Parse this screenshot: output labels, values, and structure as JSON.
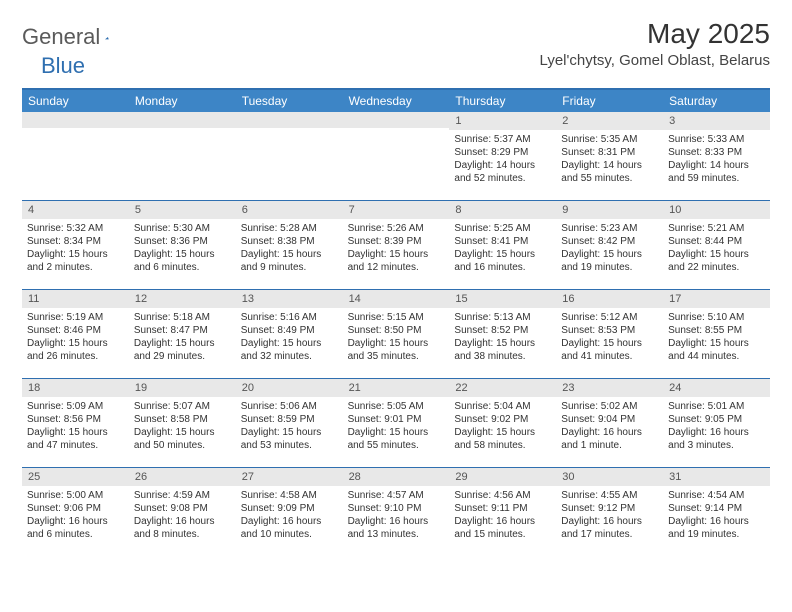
{
  "brand": {
    "text1": "General",
    "text2": "Blue"
  },
  "title": "May 2025",
  "location": "Lyel'chytsy, Gomel Oblast, Belarus",
  "colors": {
    "header_bg": "#3d85c6",
    "accent_border": "#2f6fb0",
    "daynum_bg": "#e8e8e8",
    "logo_gray": "#5a5a5a",
    "logo_blue": "#2f6fb0"
  },
  "weekdays": [
    "Sunday",
    "Monday",
    "Tuesday",
    "Wednesday",
    "Thursday",
    "Friday",
    "Saturday"
  ],
  "weeks": [
    [
      {
        "n": "",
        "sr": "",
        "ss": "",
        "dl": ""
      },
      {
        "n": "",
        "sr": "",
        "ss": "",
        "dl": ""
      },
      {
        "n": "",
        "sr": "",
        "ss": "",
        "dl": ""
      },
      {
        "n": "",
        "sr": "",
        "ss": "",
        "dl": ""
      },
      {
        "n": "1",
        "sr": "Sunrise: 5:37 AM",
        "ss": "Sunset: 8:29 PM",
        "dl": "Daylight: 14 hours and 52 minutes."
      },
      {
        "n": "2",
        "sr": "Sunrise: 5:35 AM",
        "ss": "Sunset: 8:31 PM",
        "dl": "Daylight: 14 hours and 55 minutes."
      },
      {
        "n": "3",
        "sr": "Sunrise: 5:33 AM",
        "ss": "Sunset: 8:33 PM",
        "dl": "Daylight: 14 hours and 59 minutes."
      }
    ],
    [
      {
        "n": "4",
        "sr": "Sunrise: 5:32 AM",
        "ss": "Sunset: 8:34 PM",
        "dl": "Daylight: 15 hours and 2 minutes."
      },
      {
        "n": "5",
        "sr": "Sunrise: 5:30 AM",
        "ss": "Sunset: 8:36 PM",
        "dl": "Daylight: 15 hours and 6 minutes."
      },
      {
        "n": "6",
        "sr": "Sunrise: 5:28 AM",
        "ss": "Sunset: 8:38 PM",
        "dl": "Daylight: 15 hours and 9 minutes."
      },
      {
        "n": "7",
        "sr": "Sunrise: 5:26 AM",
        "ss": "Sunset: 8:39 PM",
        "dl": "Daylight: 15 hours and 12 minutes."
      },
      {
        "n": "8",
        "sr": "Sunrise: 5:25 AM",
        "ss": "Sunset: 8:41 PM",
        "dl": "Daylight: 15 hours and 16 minutes."
      },
      {
        "n": "9",
        "sr": "Sunrise: 5:23 AM",
        "ss": "Sunset: 8:42 PM",
        "dl": "Daylight: 15 hours and 19 minutes."
      },
      {
        "n": "10",
        "sr": "Sunrise: 5:21 AM",
        "ss": "Sunset: 8:44 PM",
        "dl": "Daylight: 15 hours and 22 minutes."
      }
    ],
    [
      {
        "n": "11",
        "sr": "Sunrise: 5:19 AM",
        "ss": "Sunset: 8:46 PM",
        "dl": "Daylight: 15 hours and 26 minutes."
      },
      {
        "n": "12",
        "sr": "Sunrise: 5:18 AM",
        "ss": "Sunset: 8:47 PM",
        "dl": "Daylight: 15 hours and 29 minutes."
      },
      {
        "n": "13",
        "sr": "Sunrise: 5:16 AM",
        "ss": "Sunset: 8:49 PM",
        "dl": "Daylight: 15 hours and 32 minutes."
      },
      {
        "n": "14",
        "sr": "Sunrise: 5:15 AM",
        "ss": "Sunset: 8:50 PM",
        "dl": "Daylight: 15 hours and 35 minutes."
      },
      {
        "n": "15",
        "sr": "Sunrise: 5:13 AM",
        "ss": "Sunset: 8:52 PM",
        "dl": "Daylight: 15 hours and 38 minutes."
      },
      {
        "n": "16",
        "sr": "Sunrise: 5:12 AM",
        "ss": "Sunset: 8:53 PM",
        "dl": "Daylight: 15 hours and 41 minutes."
      },
      {
        "n": "17",
        "sr": "Sunrise: 5:10 AM",
        "ss": "Sunset: 8:55 PM",
        "dl": "Daylight: 15 hours and 44 minutes."
      }
    ],
    [
      {
        "n": "18",
        "sr": "Sunrise: 5:09 AM",
        "ss": "Sunset: 8:56 PM",
        "dl": "Daylight: 15 hours and 47 minutes."
      },
      {
        "n": "19",
        "sr": "Sunrise: 5:07 AM",
        "ss": "Sunset: 8:58 PM",
        "dl": "Daylight: 15 hours and 50 minutes."
      },
      {
        "n": "20",
        "sr": "Sunrise: 5:06 AM",
        "ss": "Sunset: 8:59 PM",
        "dl": "Daylight: 15 hours and 53 minutes."
      },
      {
        "n": "21",
        "sr": "Sunrise: 5:05 AM",
        "ss": "Sunset: 9:01 PM",
        "dl": "Daylight: 15 hours and 55 minutes."
      },
      {
        "n": "22",
        "sr": "Sunrise: 5:04 AM",
        "ss": "Sunset: 9:02 PM",
        "dl": "Daylight: 15 hours and 58 minutes."
      },
      {
        "n": "23",
        "sr": "Sunrise: 5:02 AM",
        "ss": "Sunset: 9:04 PM",
        "dl": "Daylight: 16 hours and 1 minute."
      },
      {
        "n": "24",
        "sr": "Sunrise: 5:01 AM",
        "ss": "Sunset: 9:05 PM",
        "dl": "Daylight: 16 hours and 3 minutes."
      }
    ],
    [
      {
        "n": "25",
        "sr": "Sunrise: 5:00 AM",
        "ss": "Sunset: 9:06 PM",
        "dl": "Daylight: 16 hours and 6 minutes."
      },
      {
        "n": "26",
        "sr": "Sunrise: 4:59 AM",
        "ss": "Sunset: 9:08 PM",
        "dl": "Daylight: 16 hours and 8 minutes."
      },
      {
        "n": "27",
        "sr": "Sunrise: 4:58 AM",
        "ss": "Sunset: 9:09 PM",
        "dl": "Daylight: 16 hours and 10 minutes."
      },
      {
        "n": "28",
        "sr": "Sunrise: 4:57 AM",
        "ss": "Sunset: 9:10 PM",
        "dl": "Daylight: 16 hours and 13 minutes."
      },
      {
        "n": "29",
        "sr": "Sunrise: 4:56 AM",
        "ss": "Sunset: 9:11 PM",
        "dl": "Daylight: 16 hours and 15 minutes."
      },
      {
        "n": "30",
        "sr": "Sunrise: 4:55 AM",
        "ss": "Sunset: 9:12 PM",
        "dl": "Daylight: 16 hours and 17 minutes."
      },
      {
        "n": "31",
        "sr": "Sunrise: 4:54 AM",
        "ss": "Sunset: 9:14 PM",
        "dl": "Daylight: 16 hours and 19 minutes."
      }
    ]
  ]
}
